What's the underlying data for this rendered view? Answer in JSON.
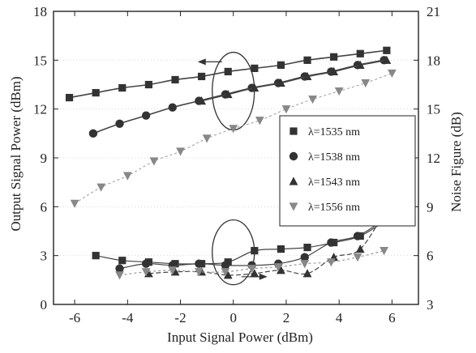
{
  "colors": {
    "frame": "#222222",
    "series_dark": "#333333",
    "series_light": "#888888",
    "fit_line": "#444444"
  },
  "chart_data": {
    "type": "line",
    "title": "",
    "xlabel": "Input Signal Power (dBm)",
    "ylabel_left": "Output Signal Power (dBm)",
    "ylabel_right": "Noise Figure (dB)",
    "xlim": [
      -6.8,
      7
    ],
    "ylim_left": [
      0,
      18
    ],
    "ylim_right": [
      3,
      21
    ],
    "x_ticks": [
      -6,
      -4,
      -2,
      0,
      2,
      4,
      6
    ],
    "y_ticks_left": [
      0,
      3,
      6,
      9,
      12,
      15,
      18
    ],
    "y_ticks_right": [
      3,
      6,
      9,
      12,
      15,
      18,
      21
    ],
    "legend_position": "center-right",
    "series": [
      {
        "name": "λ=1535 nm",
        "marker": "square",
        "color": "#333333",
        "output_power": {
          "x": [
            -6.2,
            -5.2,
            -4.2,
            -3.2,
            -2.2,
            -1.2,
            -0.2,
            0.8,
            1.8,
            2.8,
            3.8,
            4.8,
            5.8
          ],
          "y": [
            12.7,
            13.0,
            13.3,
            13.5,
            13.8,
            14.0,
            14.3,
            14.5,
            14.7,
            15.0,
            15.2,
            15.4,
            15.6
          ]
        },
        "noise_figure": {
          "x": [
            -5.2,
            -4.2,
            -3.2,
            -2.2,
            -1.2,
            -0.2,
            0.8,
            1.8,
            2.8,
            3.8,
            4.8,
            5.8
          ],
          "y": [
            6.0,
            5.7,
            5.6,
            5.5,
            5.5,
            5.6,
            6.3,
            6.4,
            6.5,
            6.8,
            7.2,
            8.2
          ]
        }
      },
      {
        "name": "λ=1538 nm",
        "marker": "circle",
        "color": "#333333",
        "output_power": {
          "x": [
            -5.3,
            -4.3,
            -3.3,
            -2.3,
            -1.3,
            -0.3,
            0.7,
            1.7,
            2.7,
            3.7,
            4.7,
            5.7
          ],
          "y": [
            10.5,
            11.1,
            11.6,
            12.1,
            12.5,
            12.9,
            13.3,
            13.6,
            14.0,
            14.3,
            14.7,
            15.0
          ]
        },
        "noise_figure": {
          "x": [
            -4.3,
            -3.3,
            -2.3,
            -1.3,
            -0.3,
            0.7,
            1.7,
            2.7,
            3.7,
            4.7,
            5.7
          ],
          "y": [
            5.2,
            5.5,
            5.4,
            5.5,
            5.4,
            5.4,
            5.5,
            5.9,
            6.8,
            7.2,
            8.2
          ]
        }
      },
      {
        "name": "λ=1543 nm",
        "marker": "triangle",
        "color": "#333333",
        "output_power": {
          "x": [
            -1.2,
            -0.2,
            0.8,
            1.8,
            2.8,
            3.8,
            4.8,
            5.8
          ],
          "y": [
            12.5,
            12.9,
            13.3,
            13.6,
            14.0,
            14.3,
            14.7,
            15.0
          ]
        },
        "noise_figure": {
          "x": [
            -3.2,
            -2.2,
            -1.2,
            -0.2,
            0.8,
            1.8,
            2.8,
            3.8,
            4.8,
            5.8
          ],
          "y": [
            4.9,
            5.0,
            5.0,
            4.8,
            4.9,
            5.1,
            4.9,
            5.9,
            6.4,
            8.9
          ]
        }
      },
      {
        "name": "λ=1556 nm",
        "marker": "inverted-triangle",
        "color": "#888888",
        "output_power": {
          "x": [
            -6.0,
            -5.0,
            -4.0,
            -3.0,
            -2.0,
            -1.0,
            0.0,
            1.0,
            2.0,
            3.0,
            4.0,
            5.0,
            6.0
          ],
          "y": [
            6.2,
            7.2,
            7.9,
            8.8,
            9.4,
            10.2,
            10.8,
            11.3,
            12.0,
            12.6,
            13.1,
            13.6,
            14.2
          ]
        },
        "noise_figure": {
          "x": [
            -4.3,
            -3.3,
            -2.3,
            -1.3,
            -0.3,
            0.7,
            1.7,
            2.7,
            3.7,
            4.7,
            5.7
          ],
          "y": [
            4.8,
            5.0,
            5.1,
            5.0,
            5.0,
            5.2,
            5.3,
            5.5,
            5.6,
            5.9,
            6.3
          ]
        }
      }
    ]
  }
}
